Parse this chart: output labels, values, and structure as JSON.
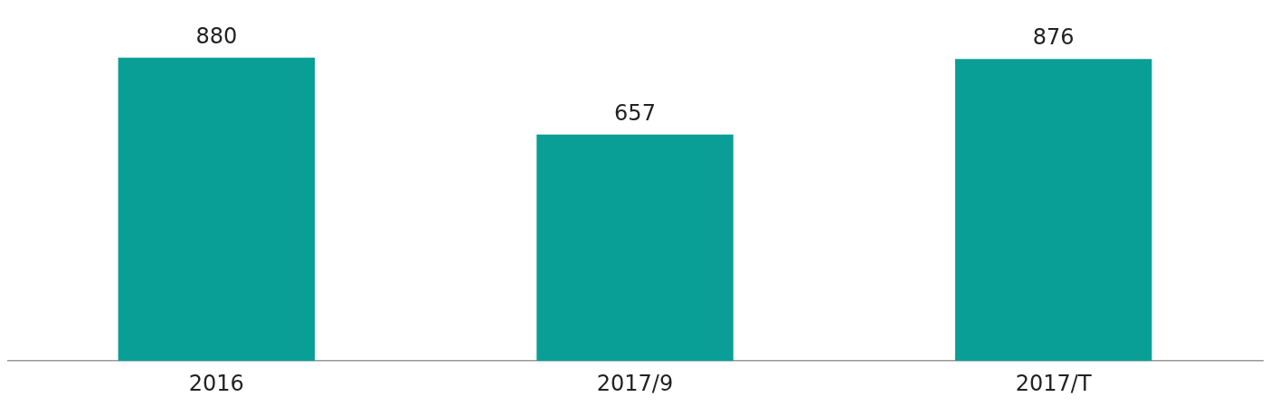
{
  "chart_data": {
    "type": "bar",
    "categories": [
      "2016",
      "2017/9",
      "2017/T"
    ],
    "values": [
      880,
      657,
      876
    ],
    "color": "#0a9f96",
    "data_labels": true,
    "grid": false,
    "legend": false
  }
}
